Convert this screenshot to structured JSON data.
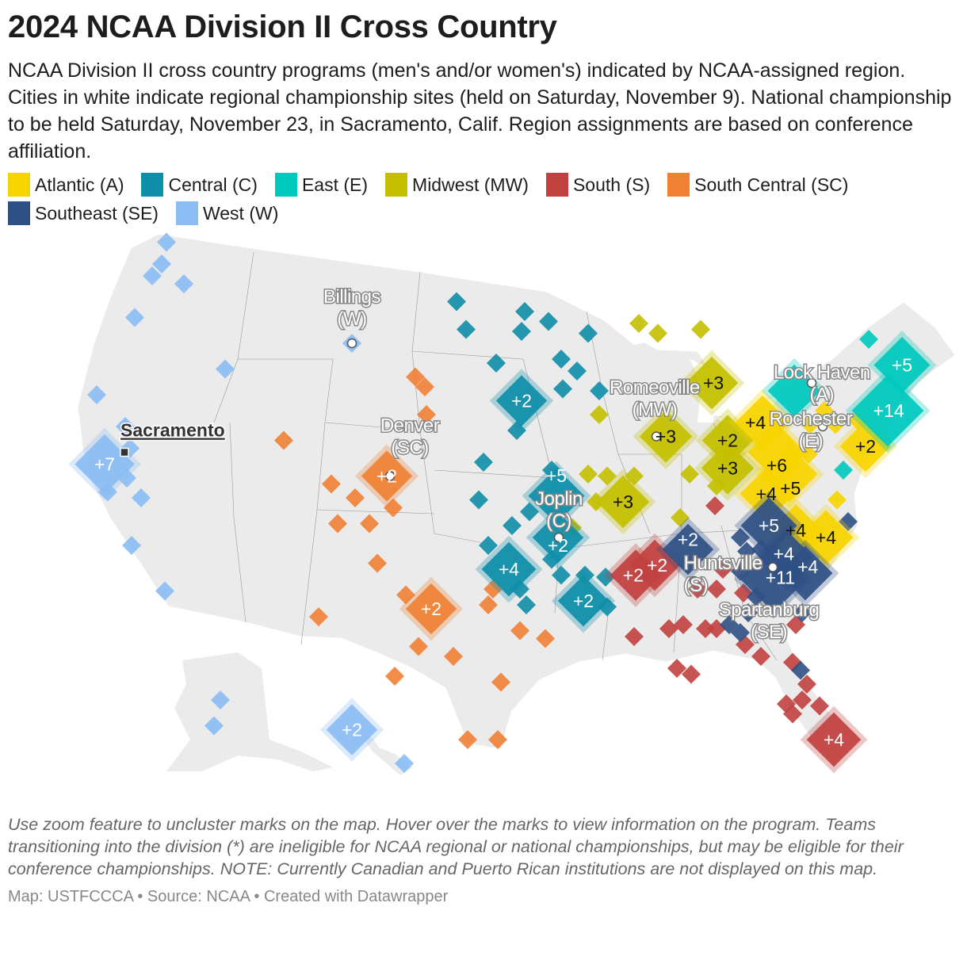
{
  "title": "2024 NCAA Division II Cross Country",
  "description": "NCAA Division II cross country programs (men's and/or women's) indicated by NCAA-assigned region. Cities in white indicate regional championship sites (held on Saturday, November 9). National championship to be held Saturday, November 23, in Sacramento, Calif. Region assignments are based on conference affiliation.",
  "legend": [
    {
      "code": "A",
      "label": "Atlantic (A)",
      "color": "#f7d500"
    },
    {
      "code": "C",
      "label": "Central (C)",
      "color": "#0e8ea8"
    },
    {
      "code": "E",
      "label": "East (E)",
      "color": "#00c9bd"
    },
    {
      "code": "MW",
      "label": "Midwest (MW)",
      "color": "#c4c000"
    },
    {
      "code": "S",
      "label": "South (S)",
      "color": "#c14140"
    },
    {
      "code": "SC",
      "label": "South Central (SC)",
      "color": "#f08135"
    },
    {
      "code": "SE",
      "label": "Southeast (SE)",
      "color": "#2f5085"
    },
    {
      "code": "W",
      "label": "West (W)",
      "color": "#8bbcf4"
    }
  ],
  "map": {
    "land_color": "#ebebeb",
    "national_site": {
      "name": "Sacramento",
      "lon": -121.55,
      "lat": 39.7
    },
    "regional_sites": [
      {
        "name": "Billings (W)",
        "lon": -107.2,
        "lat": 45.2
      },
      {
        "name": "Denver (SC)",
        "lon": -104.8,
        "lat": 38.5
      },
      {
        "name": "Romeoville (MW)",
        "lon": -88.0,
        "lat": 40.5
      },
      {
        "name": "Joplin (C)",
        "lon": -94.15,
        "lat": 35.4
      },
      {
        "name": "Huntsville (S)",
        "lon": -85.6,
        "lat": 33.2
      },
      {
        "name": "Spartanburg (SE)",
        "lon": -80.65,
        "lat": 33.9
      },
      {
        "name": "Rochester (E)",
        "lon": -78.2,
        "lat": 43.2
      },
      {
        "name": "Lock Haven (A)",
        "lon": -77.5,
        "lat": 41.0
      }
    ],
    "programs": [
      [
        -118.9,
        50.3,
        "W",
        1
      ],
      [
        -119.2,
        49.2,
        "W",
        1
      ],
      [
        -119.8,
        48.6,
        "W",
        1
      ],
      [
        -117.8,
        48.2,
        "W",
        1
      ],
      [
        -120.9,
        46.5,
        "W",
        1
      ],
      [
        -115.2,
        43.9,
        "W",
        1
      ],
      [
        -123.3,
        42.6,
        "W",
        1
      ],
      [
        -121.5,
        41.0,
        "W",
        1
      ],
      [
        -121.2,
        39.9,
        "W",
        1
      ],
      [
        -122.8,
        39.1,
        "W",
        7
      ],
      [
        -121.4,
        38.4,
        "W",
        1
      ],
      [
        -122.6,
        37.7,
        "W",
        1
      ],
      [
        -120.5,
        37.4,
        "W",
        1
      ],
      [
        -121.1,
        35.0,
        "W",
        1
      ],
      [
        -119.0,
        32.7,
        "W",
        1
      ],
      [
        -115.5,
        27.2,
        "W",
        1
      ],
      [
        -115.9,
        25.9,
        "W",
        1
      ],
      [
        -107.2,
        25.7,
        "W",
        2
      ],
      [
        -103.9,
        24.0,
        "W",
        1
      ],
      [
        -107.2,
        45.2,
        "W",
        1
      ],
      [
        -100.6,
        47.3,
        "C",
        1
      ],
      [
        -100.0,
        45.9,
        "C",
        1
      ],
      [
        -96.3,
        46.8,
        "C",
        1
      ],
      [
        -96.5,
        45.8,
        "C",
        1
      ],
      [
        -94.8,
        46.3,
        "C",
        1
      ],
      [
        -92.3,
        45.7,
        "C",
        1
      ],
      [
        -98.1,
        44.2,
        "C",
        1
      ],
      [
        -94.0,
        44.4,
        "C",
        1
      ],
      [
        -93.0,
        43.8,
        "C",
        1
      ],
      [
        -93.9,
        42.9,
        "C",
        1
      ],
      [
        -91.6,
        42.8,
        "C",
        1
      ],
      [
        -96.5,
        42.3,
        "C",
        2
      ],
      [
        -96.8,
        40.8,
        "C",
        1
      ],
      [
        -98.9,
        39.2,
        "C",
        1
      ],
      [
        -94.6,
        38.8,
        "C",
        1
      ],
      [
        -99.2,
        37.3,
        "C",
        1
      ],
      [
        -94.3,
        37.5,
        "C",
        5
      ],
      [
        -96.0,
        36.7,
        "C",
        1
      ],
      [
        -97.1,
        36.0,
        "C",
        1
      ],
      [
        -98.6,
        35.0,
        "C",
        1
      ],
      [
        -94.2,
        35.4,
        "C",
        2
      ],
      [
        -97.3,
        33.8,
        "C",
        4
      ],
      [
        -94.0,
        33.5,
        "C",
        1
      ],
      [
        -92.5,
        33.5,
        "C",
        1
      ],
      [
        -96.2,
        32.0,
        "C",
        1
      ],
      [
        -92.6,
        32.2,
        "C",
        2
      ],
      [
        -91.1,
        31.9,
        "C",
        1
      ],
      [
        -96.6,
        32.8,
        "C",
        1
      ],
      [
        -91.2,
        33.4,
        "C",
        1
      ],
      [
        -94.6,
        34.3,
        "C",
        1
      ],
      [
        -79.3,
        42.8,
        "E",
        3
      ],
      [
        -72.5,
        44.1,
        "E",
        5
      ],
      [
        -73.4,
        41.8,
        "E",
        14
      ],
      [
        -76.2,
        38.8,
        "E",
        1
      ],
      [
        -74.6,
        45.4,
        "E",
        1
      ],
      [
        -89.1,
        46.2,
        "MW",
        1
      ],
      [
        -87.9,
        45.7,
        "MW",
        1
      ],
      [
        -85.2,
        45.9,
        "MW",
        1
      ],
      [
        -91.6,
        41.6,
        "MW",
        1
      ],
      [
        -84.5,
        43.2,
        "MW",
        3
      ],
      [
        -87.4,
        40.5,
        "MW",
        3
      ],
      [
        -83.5,
        40.3,
        "MW",
        2
      ],
      [
        -83.5,
        38.9,
        "MW",
        3
      ],
      [
        -92.3,
        38.6,
        "MW",
        1
      ],
      [
        -91.1,
        38.5,
        "MW",
        1
      ],
      [
        -89.4,
        38.5,
        "MW",
        1
      ],
      [
        -90.1,
        37.2,
        "MW",
        3
      ],
      [
        -93.3,
        35.9,
        "MW",
        1
      ],
      [
        -91.8,
        37.2,
        "MW",
        1
      ],
      [
        -86.5,
        36.4,
        "MW",
        1
      ],
      [
        -85.9,
        38.6,
        "MW",
        1
      ],
      [
        -84.2,
        38.0,
        "MW",
        1
      ],
      [
        -81.3,
        41.2,
        "A",
        4
      ],
      [
        -80.4,
        39.7,
        "A",
        6
      ],
      [
        -79.6,
        38.6,
        "A",
        5
      ],
      [
        -81.0,
        37.6,
        "A",
        4
      ],
      [
        -79.2,
        35.7,
        "A",
        4
      ],
      [
        -77.3,
        35.4,
        "A",
        4
      ],
      [
        -77.4,
        41.8,
        "A",
        1
      ],
      [
        -76.7,
        41.1,
        "A",
        1
      ],
      [
        -75.3,
        41.3,
        "A",
        1
      ],
      [
        -74.8,
        40.0,
        "A",
        2
      ],
      [
        -78.3,
        41.1,
        "A",
        1
      ],
      [
        -76.6,
        37.3,
        "A",
        1
      ],
      [
        -78.4,
        39.6,
        "A",
        1
      ],
      [
        -88.1,
        34.0,
        "S",
        2
      ],
      [
        -89.3,
        33.5,
        "S",
        2
      ],
      [
        -84.3,
        37.0,
        "S",
        1
      ],
      [
        -83.8,
        33.8,
        "S",
        1
      ],
      [
        -85.4,
        32.8,
        "S",
        1
      ],
      [
        -84.2,
        32.8,
        "S",
        1
      ],
      [
        -89.4,
        30.4,
        "S",
        1
      ],
      [
        -87.2,
        30.8,
        "S",
        1
      ],
      [
        -86.3,
        31.0,
        "S",
        1
      ],
      [
        -84.9,
        30.8,
        "S",
        1
      ],
      [
        -84.2,
        30.8,
        "S",
        1
      ],
      [
        -82.4,
        30.0,
        "S",
        1
      ],
      [
        -81.4,
        29.4,
        "S",
        1
      ],
      [
        -86.7,
        28.8,
        "S",
        1
      ],
      [
        -85.8,
        28.5,
        "S",
        1
      ],
      [
        -79.4,
        29.1,
        "S",
        1
      ],
      [
        -78.5,
        28.0,
        "S",
        1
      ],
      [
        -78.8,
        27.2,
        "S",
        1
      ],
      [
        -79.8,
        27.0,
        "S",
        1
      ],
      [
        -79.4,
        26.5,
        "S",
        1
      ],
      [
        -77.7,
        26.9,
        "S",
        1
      ],
      [
        -76.8,
        25.2,
        "S",
        4
      ],
      [
        -79.2,
        31.0,
        "S",
        1
      ],
      [
        -82.5,
        32.6,
        "S",
        1
      ],
      [
        -86.0,
        34.8,
        "SE",
        2
      ],
      [
        -80.9,
        36.0,
        "SE",
        5
      ],
      [
        -79.8,
        34.4,
        "SE",
        4
      ],
      [
        -78.6,
        33.6,
        "SE",
        4
      ],
      [
        -80.6,
        33.3,
        "SE",
        11
      ],
      [
        -82.7,
        35.4,
        "SE",
        1
      ],
      [
        -82.3,
        34.7,
        "SE",
        1
      ],
      [
        -82.7,
        33.7,
        "SE",
        1
      ],
      [
        -81.7,
        32.4,
        "SE",
        1
      ],
      [
        -82.2,
        31.6,
        "SE",
        1
      ],
      [
        -83.4,
        31.0,
        "SE",
        1
      ],
      [
        -82.7,
        30.6,
        "SE",
        1
      ],
      [
        -78.8,
        31.6,
        "SE",
        1
      ],
      [
        -75.9,
        36.2,
        "SE",
        1
      ],
      [
        -78.9,
        28.7,
        "SE",
        1
      ],
      [
        -81.4,
        34.8,
        "SE",
        1
      ],
      [
        -103.2,
        43.5,
        "SC",
        1
      ],
      [
        -102.6,
        43.0,
        "SC",
        1
      ],
      [
        -102.5,
        41.6,
        "SC",
        1
      ],
      [
        -111.5,
        40.3,
        "SC",
        1
      ],
      [
        -105.0,
        38.5,
        "SC",
        2
      ],
      [
        -108.5,
        38.1,
        "SC",
        1
      ],
      [
        -107.0,
        37.4,
        "SC",
        1
      ],
      [
        -104.6,
        36.9,
        "SC",
        1
      ],
      [
        -106.1,
        36.1,
        "SC",
        1
      ],
      [
        -108.1,
        36.1,
        "SC",
        1
      ],
      [
        -105.6,
        34.1,
        "SC",
        1
      ],
      [
        -102.2,
        31.8,
        "SC",
        2
      ],
      [
        -103.8,
        32.5,
        "SC",
        1
      ],
      [
        -109.3,
        31.4,
        "SC",
        1
      ],
      [
        -103.0,
        29.9,
        "SC",
        1
      ],
      [
        -100.8,
        29.4,
        "SC",
        1
      ],
      [
        -104.5,
        28.4,
        "SC",
        1
      ],
      [
        -97.8,
        28.1,
        "SC",
        1
      ],
      [
        -96.6,
        30.7,
        "SC",
        1
      ],
      [
        -95.0,
        30.3,
        "SC",
        1
      ],
      [
        -99.9,
        25.2,
        "SC",
        1
      ],
      [
        -98.0,
        25.2,
        "SC",
        1
      ],
      [
        -98.3,
        32.8,
        "SC",
        1
      ],
      [
        -98.6,
        32.0,
        "SC",
        1
      ]
    ]
  },
  "footnote": "Use zoom feature to uncluster marks on the map. Hover over the marks to view information on the program. Teams transitioning into the division (*) are ineligible for NCAA regional or national championships, but may be eligible for their conference championships. NOTE: Currently Canadian and Puerto Rican institutions are not displayed on this map.",
  "credit": "Map: USTFCCCA • Source: NCAA • Created with Datawrapper"
}
